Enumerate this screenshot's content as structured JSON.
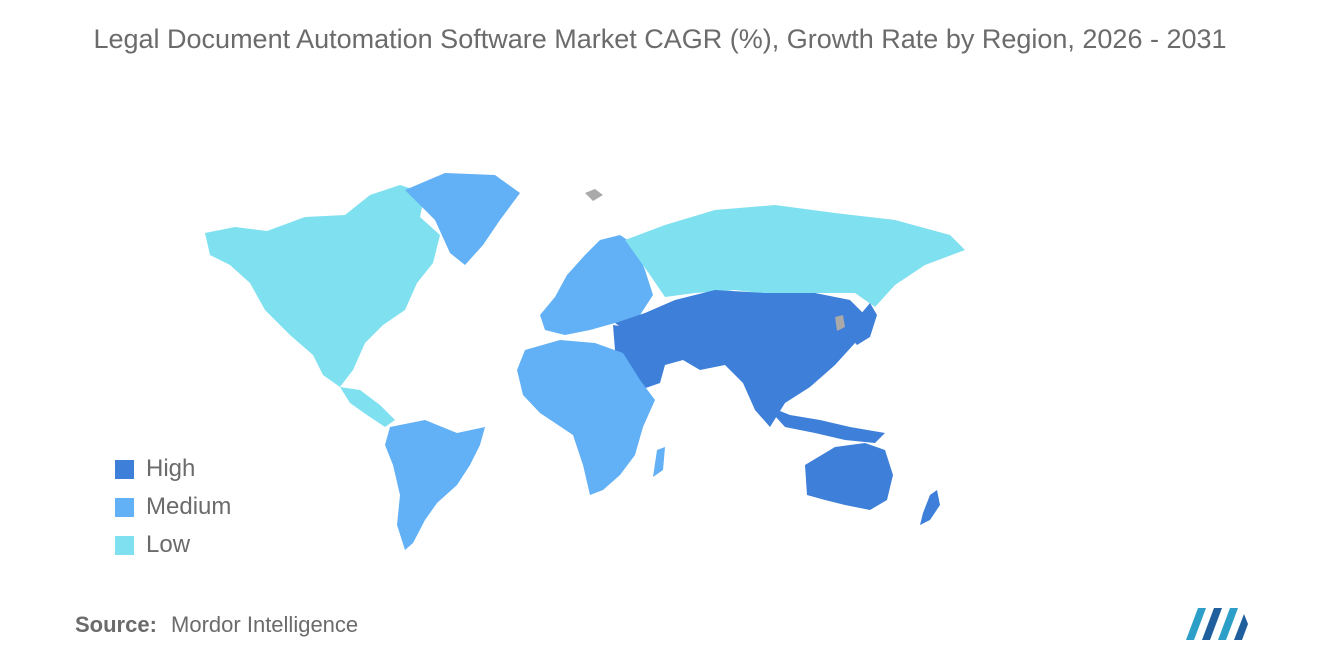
{
  "title": "Legal Document Automation Software Market CAGR (%), Growth Rate by Region, 2026 - 2031",
  "legend": [
    {
      "label": "High",
      "color": "#3d7fd9"
    },
    {
      "label": "Medium",
      "color": "#62b0f5"
    },
    {
      "label": "Low",
      "color": "#7fe0f0"
    }
  ],
  "regions": [
    {
      "name": "North America",
      "level": "Low"
    },
    {
      "name": "Russia",
      "level": "Low"
    },
    {
      "name": "Greenland",
      "level": "Medium"
    },
    {
      "name": "Europe",
      "level": "Medium"
    },
    {
      "name": "South America",
      "level": "Medium"
    },
    {
      "name": "Africa",
      "level": "Medium"
    },
    {
      "name": "Asia",
      "level": "High"
    },
    {
      "name": "Middle East",
      "level": "High"
    },
    {
      "name": "Australia",
      "level": "High"
    },
    {
      "name": "New Zealand",
      "level": "High"
    }
  ],
  "source": {
    "label": "Source:",
    "value": "Mordor Intelligence"
  },
  "no_data_color": "#a9a9a9"
}
